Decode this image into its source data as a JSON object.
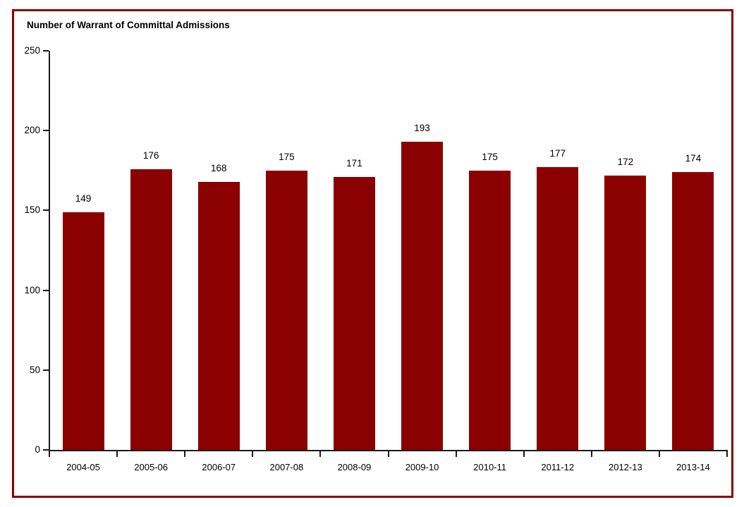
{
  "frame": {
    "border_color": "#8B0000",
    "background_color": "#FFFFFF"
  },
  "chart_data": {
    "type": "bar",
    "title": "Number of Warrant of Committal Admissions",
    "categories": [
      "2004-05",
      "2005-06",
      "2006-07",
      "2007-08",
      "2008-09",
      "2009-10",
      "2010-11",
      "2011-12",
      "2012-13",
      "2013-14"
    ],
    "values": [
      149,
      176,
      168,
      175,
      171,
      193,
      175,
      177,
      172,
      174
    ],
    "bar_color": "#8B0000",
    "axis_color": "#1a1a1a",
    "text_color": "#000000",
    "xlabel": "",
    "ylabel": "",
    "ylim": [
      0,
      250
    ],
    "yticks": [
      0,
      50,
      100,
      150,
      200,
      250
    ],
    "grid": false,
    "legend": "none",
    "value_labels_shown": true
  }
}
